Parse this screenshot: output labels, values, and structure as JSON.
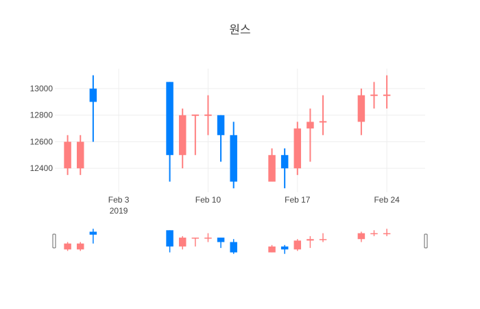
{
  "chart_data": {
    "type": "candlestick",
    "title": "원스",
    "y_ticks": [
      12400,
      12600,
      12800,
      13000
    ],
    "ylim": [
      12220,
      13150
    ],
    "x_ticks": [
      {
        "date": "2019-02-03",
        "label": "Feb 3",
        "sublabel": "2019"
      },
      {
        "date": "2019-02-10",
        "label": "Feb 10",
        "sublabel": ""
      },
      {
        "date": "2019-02-17",
        "label": "Feb 17",
        "sublabel": ""
      },
      {
        "date": "2019-02-24",
        "label": "Feb 24",
        "sublabel": ""
      }
    ],
    "xlim": [
      "2019-01-29",
      "2019-02-27"
    ],
    "grid": true,
    "rangeslider": true,
    "up_color": "#ff7f7f",
    "down_color": "#0080ff",
    "candles": [
      {
        "date": "2019-01-30",
        "open": 12400,
        "high": 12650,
        "low": 12350,
        "close": 12600
      },
      {
        "date": "2019-01-31",
        "open": 12400,
        "high": 12650,
        "low": 12350,
        "close": 12600
      },
      {
        "date": "2019-02-01",
        "open": 13000,
        "high": 13100,
        "low": 12600,
        "close": 12900
      },
      {
        "date": "2019-02-07",
        "open": 13050,
        "high": 13050,
        "low": 12300,
        "close": 12500
      },
      {
        "date": "2019-02-08",
        "open": 12500,
        "high": 12850,
        "low": 12400,
        "close": 12800
      },
      {
        "date": "2019-02-09",
        "open": 12800,
        "high": 12800,
        "low": 12500,
        "close": 12800
      },
      {
        "date": "2019-02-10",
        "open": 12800,
        "high": 12950,
        "low": 12650,
        "close": 12800
      },
      {
        "date": "2019-02-11",
        "open": 12800,
        "high": 12800,
        "low": 12450,
        "close": 12650
      },
      {
        "date": "2019-02-12",
        "open": 12650,
        "high": 12750,
        "low": 12250,
        "close": 12300
      },
      {
        "date": "2019-02-15",
        "open": 12300,
        "high": 12550,
        "low": 12300,
        "close": 12500
      },
      {
        "date": "2019-02-16",
        "open": 12500,
        "high": 12550,
        "low": 12250,
        "close": 12400
      },
      {
        "date": "2019-02-17",
        "open": 12400,
        "high": 12750,
        "low": 12350,
        "close": 12700
      },
      {
        "date": "2019-02-18",
        "open": 12700,
        "high": 12850,
        "low": 12450,
        "close": 12750
      },
      {
        "date": "2019-02-19",
        "open": 12750,
        "high": 12950,
        "low": 12650,
        "close": 12750
      },
      {
        "date": "2019-02-22",
        "open": 12750,
        "high": 13000,
        "low": 12650,
        "close": 12950
      },
      {
        "date": "2019-02-23",
        "open": 12950,
        "high": 13050,
        "low": 12850,
        "close": 12950
      },
      {
        "date": "2019-02-24",
        "open": 12950,
        "high": 13100,
        "low": 12850,
        "close": 12950
      }
    ]
  }
}
